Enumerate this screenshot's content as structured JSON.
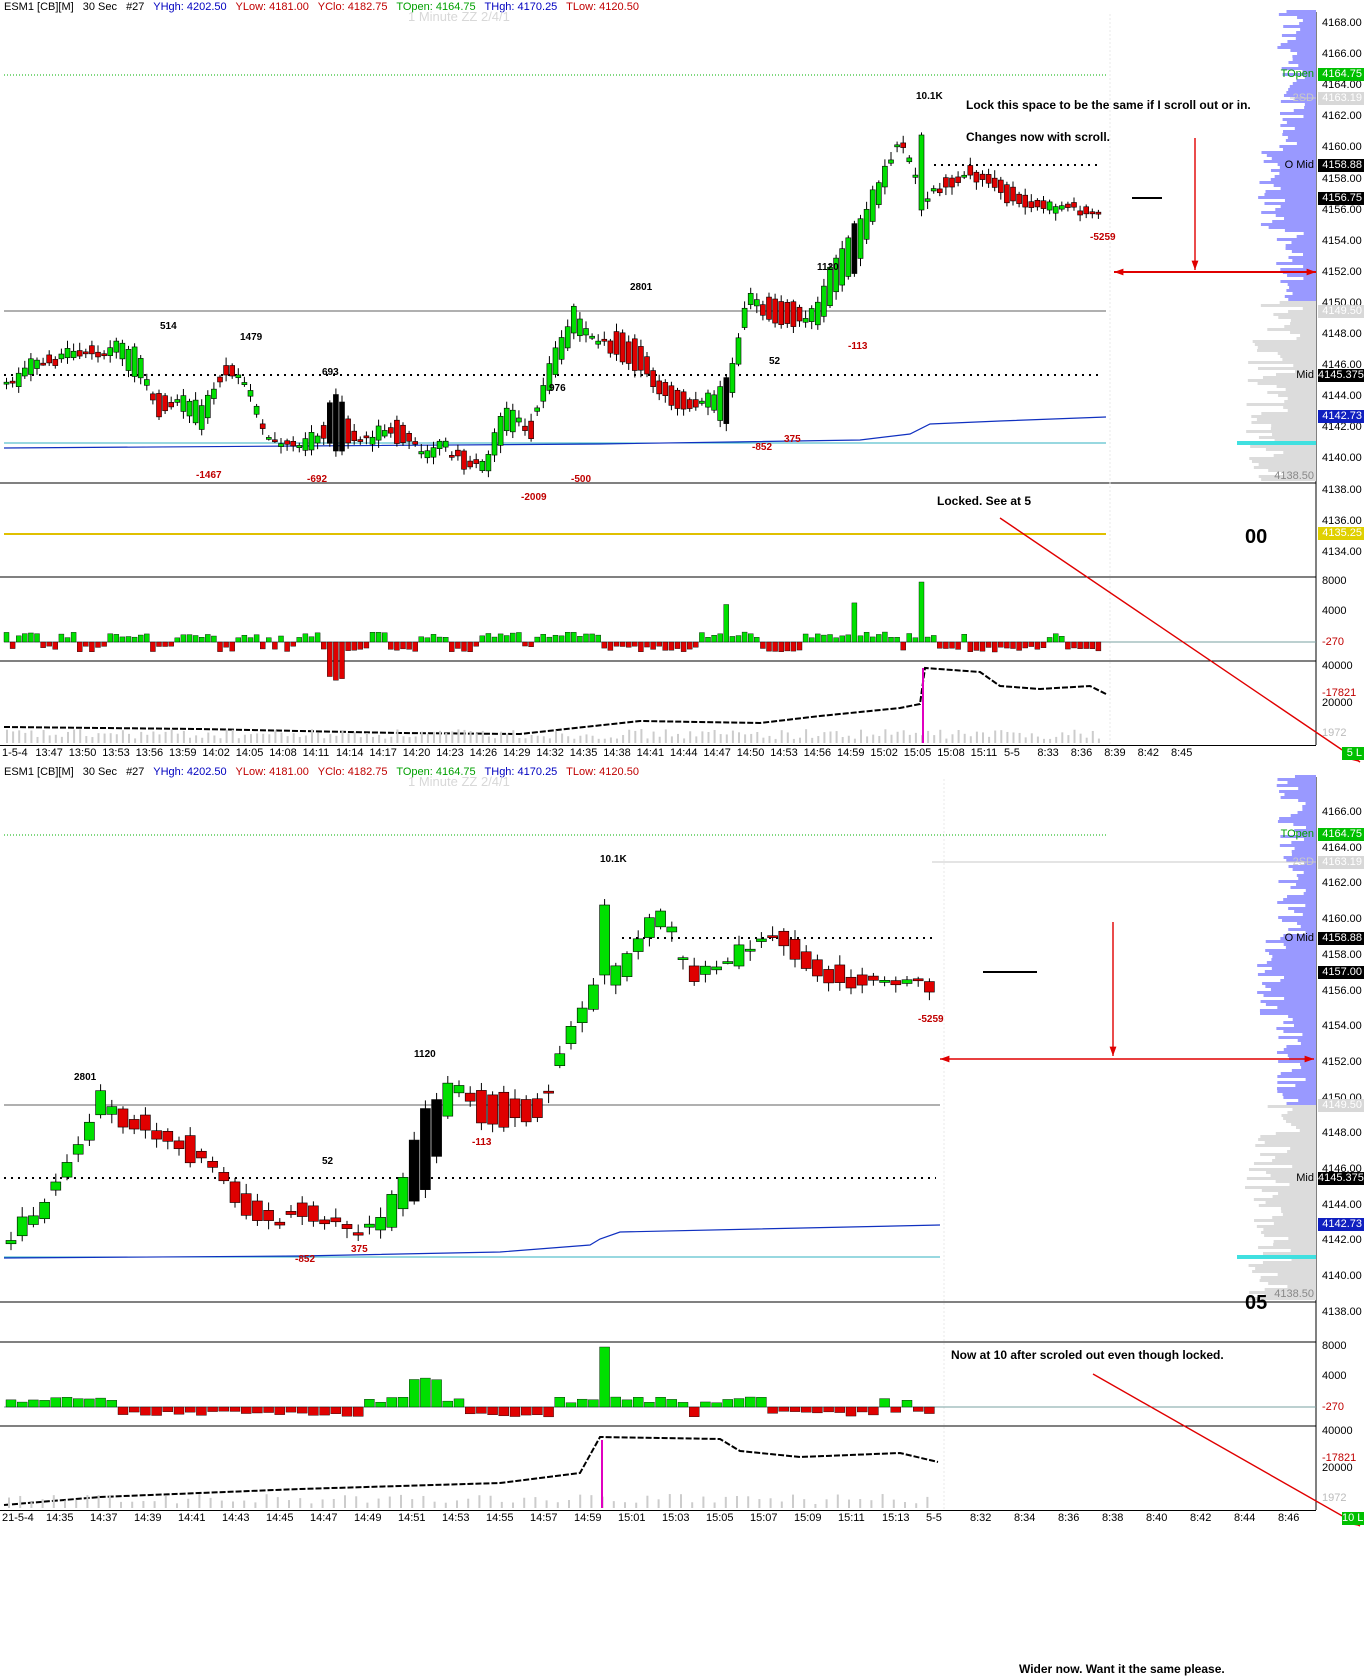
{
  "header": {
    "symbol": "ESM1 [CB][M]",
    "interval": "30 Sec",
    "bar_count": "#27",
    "yhigh": "YHgh: 4202.50",
    "ylow": "YLow: 4181.00",
    "yclose": "YClo: 4182.75",
    "topen": "TOpen: 4164.75",
    "thigh": "THgh: 4170.25",
    "tlow": "TLow: 4120.50",
    "watermark": "1 Minute ZZ 2/4/1"
  },
  "colors": {
    "up": "#00e000",
    "down": "#e00000",
    "big_bar": "#000000",
    "profile_blue": "#9999ff",
    "profile_gray": "#dcdcdc",
    "vwap": "#1030c0",
    "teal": "#40e0e0",
    "yellow": "#e0c000",
    "topen_green": "#00b000",
    "annotation_red": "#e00000"
  },
  "top": {
    "price_ticks": [
      "4168.00",
      "4166.00",
      "4164.00",
      "4162.00",
      "4160.00",
      "4158.00",
      "4156.00",
      "4154.00",
      "4152.00",
      "4150.00",
      "4148.00",
      "4146.00",
      "4144.00",
      "4142.00",
      "4140.00",
      "4138.00",
      "4136.00",
      "4134.00"
    ],
    "tags": {
      "topen": "4164.75",
      "sd2": "4163.19",
      "omid": "4158.88",
      "last": "4156.75",
      "p14950": "4149.50",
      "mid": "4145.375",
      "vwap": "4142.73",
      "p13850": "4138.50",
      "yellow": "4135.25"
    },
    "right_labels": {
      "topen": "TOpen",
      "sd2": "2SD",
      "omid": "O Mid",
      "mid": "Mid",
      "p13850": "4138.50"
    },
    "notes": {
      "lock": "Lock this space to be the same if I scroll out or in.",
      "changes": "Changes now with scroll.",
      "locked": "Locked.  See at 5"
    },
    "big_label": "00",
    "annotations": [
      {
        "text": "514",
        "red": false
      },
      {
        "text": "1479",
        "red": false
      },
      {
        "text": "693",
        "red": false
      },
      {
        "text": "976",
        "red": false
      },
      {
        "text": "2801",
        "red": false
      },
      {
        "text": "52",
        "red": false
      },
      {
        "text": "1120",
        "red": false
      },
      {
        "text": "10.1K",
        "red": false
      },
      {
        "text": "-1467",
        "red": true
      },
      {
        "text": "-692",
        "red": true
      },
      {
        "text": "-2009",
        "red": true
      },
      {
        "text": "-500",
        "red": true
      },
      {
        "text": "-852",
        "red": true
      },
      {
        "text": "375",
        "red": true
      },
      {
        "text": "-113",
        "red": true
      },
      {
        "text": "-5259",
        "red": true
      }
    ],
    "vol_ticks": [
      "8000",
      "4000",
      "-270"
    ],
    "cum_ticks": [
      "40000",
      "-17821",
      "20000",
      "1972"
    ],
    "x_ticks": [
      "1-5-4",
      "13:47",
      "13:50",
      "13:53",
      "13:56",
      "13:59",
      "14:02",
      "14:05",
      "14:08",
      "14:11",
      "14:14",
      "14:17",
      "14:20",
      "14:23",
      "14:26",
      "14:29",
      "14:32",
      "14:35",
      "14:38",
      "14:41",
      "14:44",
      "14:47",
      "14:50",
      "14:53",
      "14:56",
      "14:59",
      "15:02",
      "15:05",
      "15:08",
      "15:11",
      "5-5",
      "8:33",
      "8:36",
      "8:39",
      "8:42",
      "8:45"
    ],
    "corner": "5 L"
  },
  "bottom": {
    "price_ticks": [
      "4166.00",
      "4164.00",
      "4162.00",
      "4160.00",
      "4158.00",
      "4156.00",
      "4154.00",
      "4152.00",
      "4150.00",
      "4148.00",
      "4146.00",
      "4144.00",
      "4142.00",
      "4140.00",
      "4138.00"
    ],
    "tags": {
      "topen": "4164.75",
      "sd2": "4163.19",
      "omid": "4158.88",
      "last": "4157.00",
      "p14950": "4149.50",
      "mid": "4145.375",
      "vwap": "4142.73",
      "p13850": "4138.50"
    },
    "right_labels": {
      "topen": "TOpen",
      "sd2": "2SD",
      "omid": "O Mid",
      "mid": "Mid",
      "p13850": "4138.50"
    },
    "notes": {
      "wider": "Wider now.  Want it the same please.",
      "now10": "Now at 10 after scroled out even though locked."
    },
    "big_label": "05",
    "annotations": [
      {
        "text": "2801",
        "red": false
      },
      {
        "text": "52",
        "red": false
      },
      {
        "text": "1120",
        "red": false
      },
      {
        "text": "10.1K",
        "red": false
      },
      {
        "text": "-852",
        "red": true
      },
      {
        "text": "375",
        "red": true
      },
      {
        "text": "-113",
        "red": true
      },
      {
        "text": "-5259",
        "red": true
      }
    ],
    "vol_ticks": [
      "8000",
      "4000",
      "-270"
    ],
    "cum_ticks": [
      "40000",
      "-17821",
      "20000",
      "1972"
    ],
    "x_ticks": [
      "21-5-4",
      "14:35",
      "14:37",
      "14:39",
      "14:41",
      "14:43",
      "14:45",
      "14:47",
      "14:49",
      "14:51",
      "14:53",
      "14:55",
      "14:57",
      "14:59",
      "15:01",
      "15:03",
      "15:05",
      "15:07",
      "15:09",
      "15:11",
      "15:13",
      "5-5",
      "8:32",
      "8:34",
      "8:36",
      "8:38",
      "8:40",
      "8:42",
      "8:44",
      "8:46"
    ],
    "corner": "10 L"
  }
}
